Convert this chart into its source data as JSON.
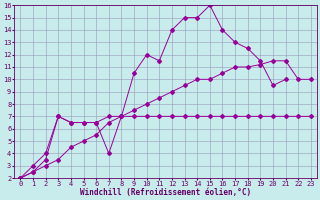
{
  "xlabel": "Windchill (Refroidissement éolien,°C)",
  "bg_color": "#c8ecec",
  "line_color": "#990099",
  "xlim": [
    -0.5,
    23.5
  ],
  "ylim": [
    2,
    16
  ],
  "xticks": [
    0,
    1,
    2,
    3,
    4,
    5,
    6,
    7,
    8,
    9,
    10,
    11,
    12,
    13,
    14,
    15,
    16,
    17,
    18,
    19,
    20,
    21,
    22,
    23
  ],
  "yticks": [
    2,
    3,
    4,
    5,
    6,
    7,
    8,
    9,
    10,
    11,
    12,
    13,
    14,
    15,
    16
  ],
  "s1_x": [
    0,
    1,
    2,
    3,
    4,
    5,
    6,
    7,
    8,
    9,
    10,
    11,
    12,
    13,
    14,
    15,
    16,
    17,
    18,
    19,
    20,
    21
  ],
  "s1_y": [
    2,
    3,
    4,
    7,
    6.5,
    6.5,
    6.5,
    4,
    7,
    10.5,
    12,
    11.5,
    14,
    15,
    15,
    16,
    14,
    13,
    12.5,
    11.5,
    9.5,
    10
  ],
  "s2_x": [
    0,
    1,
    2,
    3,
    4,
    5,
    6,
    7,
    8,
    9,
    10,
    11,
    12,
    13,
    14,
    15,
    16,
    17,
    18,
    19,
    20,
    21,
    22,
    23
  ],
  "s2_y": [
    2,
    2.5,
    3,
    3.5,
    4.5,
    5,
    5.5,
    6.5,
    7,
    7.5,
    8,
    8.5,
    9,
    9.5,
    10,
    10,
    10.5,
    11,
    11,
    11.2,
    11.5,
    11.5,
    10,
    10
  ],
  "s3_x": [
    0,
    1,
    2,
    3,
    4,
    5,
    6,
    7,
    8,
    9,
    10,
    11,
    12,
    13,
    14,
    15,
    16,
    17,
    18,
    19,
    20,
    21,
    22,
    23
  ],
  "s3_y": [
    2,
    2.5,
    3.5,
    7,
    6.5,
    6.5,
    6.5,
    7,
    7,
    7,
    7,
    7,
    7,
    7,
    7,
    7,
    7,
    7,
    7,
    7,
    7,
    7,
    7,
    7
  ]
}
